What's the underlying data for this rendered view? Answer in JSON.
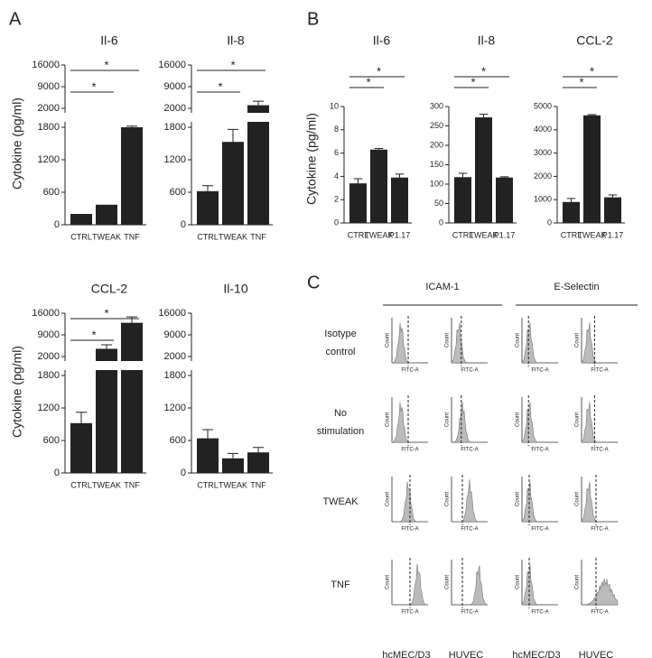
{
  "panel_labels": [
    "A",
    "B",
    "C"
  ],
  "chart_data": [
    {
      "type": "bar",
      "title": "Il-6",
      "y_label": "Cytokine (pg/ml)",
      "categories": [
        "CTRL",
        "TWEAK",
        "TNF"
      ],
      "values": [
        200,
        370,
        1800
      ],
      "errors": [
        0,
        0,
        20
      ],
      "color": "#222222",
      "ylim": [
        0,
        16000
      ],
      "ybreak": [
        1900,
        2000
      ],
      "yticks": [
        0,
        600,
        1200,
        1800,
        2000,
        9000,
        16000
      ],
      "significance": [
        {
          "text": "*",
          "between": [
            "CTRL",
            "TWEAK"
          ]
        },
        {
          "text": "*",
          "between": [
            "CTRL",
            "TNF"
          ]
        }
      ]
    },
    {
      "type": "bar",
      "title": "Il-8",
      "categories": [
        "CTRL",
        "TWEAK",
        "TNF"
      ],
      "values": [
        620,
        1530,
        3000
      ],
      "errors": [
        100,
        230,
        1300
      ],
      "color": "#222222",
      "ylim": [
        0,
        16000
      ],
      "ybreak": [
        1900,
        2000
      ],
      "yticks": [
        0,
        600,
        1200,
        1800,
        2000,
        9000,
        16000
      ],
      "significance": [
        {
          "text": "*",
          "between": [
            "CTRL",
            "TWEAK"
          ]
        },
        {
          "text": "*",
          "between": [
            "CTRL",
            "TNF"
          ]
        }
      ]
    },
    {
      "type": "bar",
      "title": "CCL-2",
      "y_label": "Cytokine (pg/ml)",
      "categories": [
        "CTRL",
        "TWEAK",
        "TNF"
      ],
      "values": [
        920,
        4500,
        12900
      ],
      "errors": [
        200,
        1300,
        1900
      ],
      "color": "#222222",
      "ylim": [
        0,
        16000
      ],
      "ybreak": [
        1900,
        2000
      ],
      "yticks": [
        0,
        600,
        1200,
        1800,
        2000,
        9000,
        16000
      ],
      "significance": [
        {
          "text": "*",
          "between": [
            "CTRL",
            "TWEAK"
          ]
        },
        {
          "text": "*",
          "between": [
            "CTRL",
            "TNF"
          ]
        }
      ]
    },
    {
      "type": "bar",
      "title": "Il-10",
      "categories": [
        "CTRL",
        "TWEAK",
        "TNF"
      ],
      "values": [
        640,
        270,
        380
      ],
      "errors": [
        160,
        90,
        90
      ],
      "color": "#222222",
      "ylim": [
        0,
        16000
      ],
      "ybreak": [
        1900,
        2000
      ],
      "yticks": [
        0,
        600,
        1200,
        1800,
        2000,
        9000,
        16000
      ],
      "significance": []
    },
    {
      "type": "bar",
      "title": "Il-6",
      "y_label": "Cytokine (pg/ml)",
      "categories": [
        "CTRL",
        "TWEAK",
        "P1.17"
      ],
      "values": [
        3.4,
        6.3,
        3.9
      ],
      "errors": [
        0.4,
        0.1,
        0.3
      ],
      "color": "#222222",
      "ylim": [
        0,
        10
      ],
      "yticks": [
        0,
        2,
        4,
        6,
        8,
        10
      ],
      "significance": [
        {
          "text": "*",
          "between": [
            "CTRL",
            "TWEAK"
          ]
        },
        {
          "text": "*",
          "between": [
            "CTRL",
            "P1.17"
          ]
        }
      ]
    },
    {
      "type": "bar",
      "title": "Il-8",
      "categories": [
        "CTRL",
        "TWEAK",
        "P1.17"
      ],
      "values": [
        118,
        272,
        117
      ],
      "errors": [
        10,
        8,
        2
      ],
      "color": "#222222",
      "ylim": [
        0,
        300
      ],
      "yticks": [
        0,
        50,
        100,
        150,
        200,
        250,
        300
      ],
      "significance": [
        {
          "text": "*",
          "between": [
            "CTRL",
            "TWEAK"
          ]
        },
        {
          "text": "*",
          "between": [
            "CTRL",
            "P1.17"
          ]
        }
      ]
    },
    {
      "type": "bar",
      "title": "CCL-2",
      "categories": [
        "CTRL",
        "TWEAK",
        "P1.17"
      ],
      "values": [
        900,
        4620,
        1100
      ],
      "errors": [
        150,
        30,
        100
      ],
      "color": "#222222",
      "ylim": [
        0,
        5000
      ],
      "yticks": [
        0,
        1000,
        2000,
        3000,
        4000,
        5000
      ],
      "significance": [
        {
          "text": "*",
          "between": [
            "CTRL",
            "TWEAK"
          ]
        },
        {
          "text": "*",
          "between": [
            "CTRL",
            "P1.17"
          ]
        }
      ]
    }
  ],
  "panel_c": {
    "headers": [
      "ICAM-1",
      "E-Selectin"
    ],
    "rows": [
      [
        "Isotype",
        "control"
      ],
      [
        "No",
        "stimulation"
      ],
      [
        "TWEAK"
      ],
      [
        "TNF"
      ]
    ],
    "columns": [
      "hcMEC/D3",
      "HUVEC",
      "hcMEC/D3",
      "HUVEC"
    ],
    "x_label": "FITC-A",
    "y_label": "Count"
  }
}
